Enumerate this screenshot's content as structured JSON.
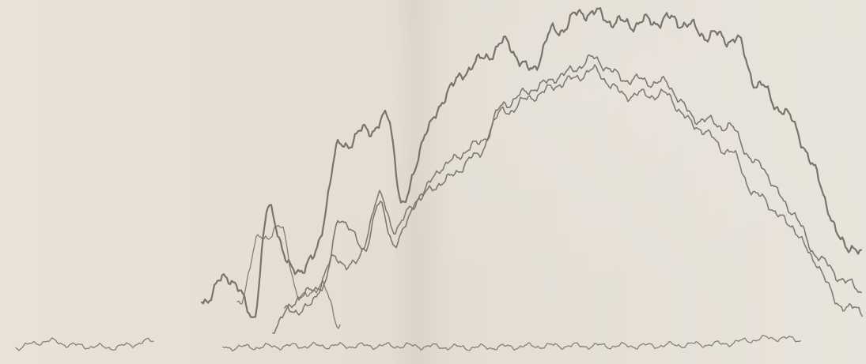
{
  "image": {
    "paper_color": "#e6e0d6",
    "ink_color": "#6f6b66",
    "traces": [
      {
        "key": "upper",
        "color": "#6e6a65",
        "weight": "heavy"
      },
      {
        "key": "middle",
        "color": "#737069",
        "weight": "medium"
      },
      {
        "key": "lower",
        "color": "#77736d",
        "weight": "medium"
      },
      {
        "key": "left-onset",
        "color": "#7a766f",
        "weight": "light"
      },
      {
        "key": "baseline-left",
        "color": "#7c7871",
        "weight": "light"
      },
      {
        "key": "baseline-right",
        "color": "#7c7871",
        "weight": "light"
      }
    ]
  }
}
